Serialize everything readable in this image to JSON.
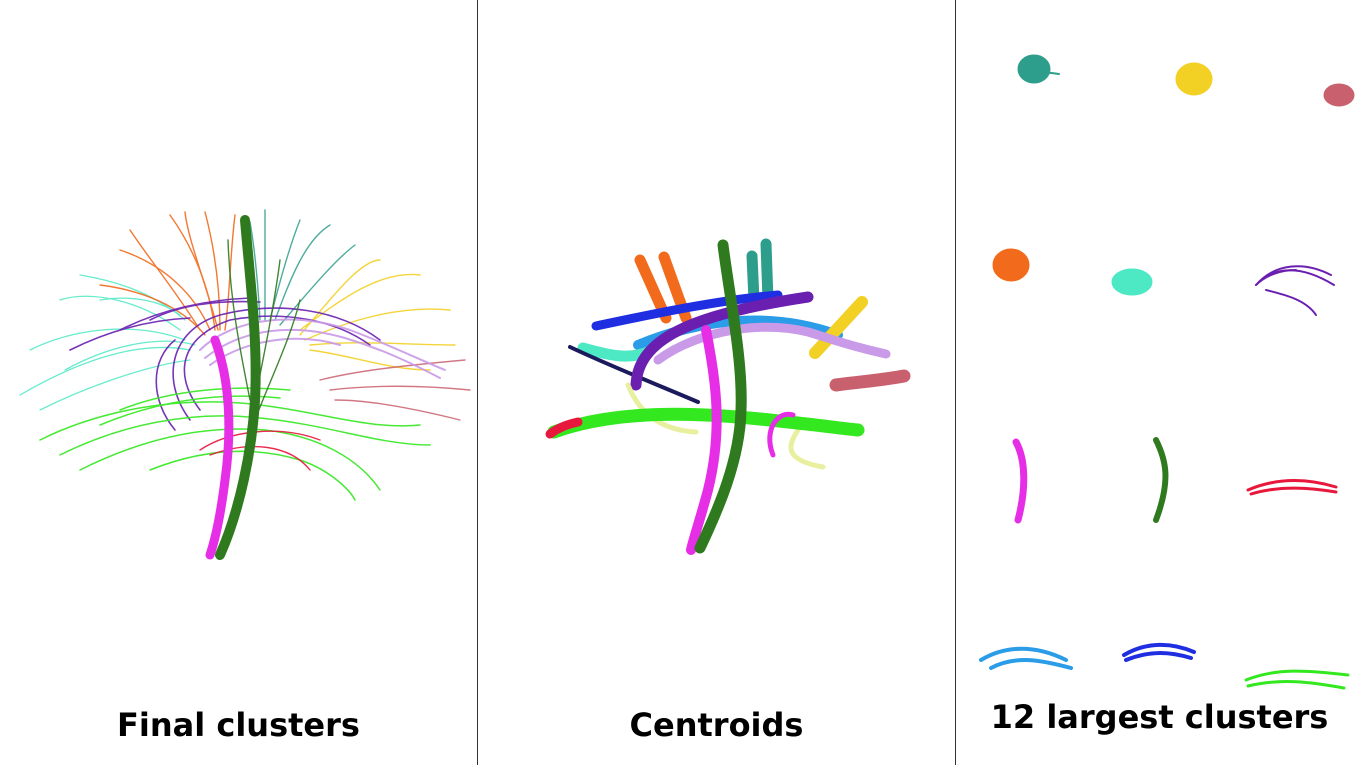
{
  "panels": [
    {
      "caption": "Final clusters",
      "view": "all-fiber-clusters-sagittal"
    },
    {
      "caption": "Centroids",
      "view": "cluster-centroid-tubes"
    },
    {
      "caption": "12 largest clusters",
      "view": "cluster-grid-4x3"
    }
  ],
  "cluster_colors": {
    "teal": "#2e9e8c",
    "yellow": "#f2d024",
    "rose": "#c9606e",
    "orange": "#f26a1b",
    "aquamarine": "#4de8c4",
    "purple": "#6a1fb0",
    "magenta": "#e62ee6",
    "dark-green": "#2f7a1e",
    "red": "#e8173c",
    "sky-blue": "#2a9ce8",
    "blue": "#1f2ee0",
    "green": "#33e81f",
    "lavender": "#c99ae8",
    "dark-navy": "#1a1a5c",
    "pale-yellow": "#e8f0a0"
  }
}
